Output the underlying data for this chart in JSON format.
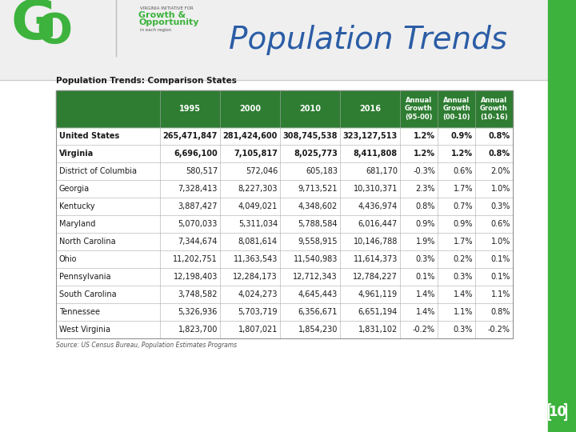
{
  "title": "Population Trends",
  "slide_title": "Population Trends: Comparison States",
  "source": "Source: US Census Bureau, Population Estimates Programs",
  "page_number": "10",
  "header_bg": "#2E7D32",
  "header_text_color": "#FFFFFF",
  "slide_bg": "#FFFFFF",
  "header_area_bg": "#E8E8E8",
  "green_sidebar_color": "#3DB33D",
  "title_color": "#1F4E79",
  "columns": [
    "",
    "1995",
    "2000",
    "2010",
    "2016",
    "Annual\nGrowth\n(95-00)",
    "Annual\nGrowth\n(00-10)",
    "Annual\nGrowth\n(10-16)"
  ],
  "rows": [
    [
      "United States",
      "265,471,847",
      "281,424,600",
      "308,745,538",
      "323,127,513",
      "1.2%",
      "0.9%",
      "0.8%"
    ],
    [
      "Virginia",
      "6,696,100",
      "7,105,817",
      "8,025,773",
      "8,411,808",
      "1.2%",
      "1.2%",
      "0.8%"
    ],
    [
      "District of Columbia",
      "580,517",
      "572,046",
      "605,183",
      "681,170",
      "-0.3%",
      "0.6%",
      "2.0%"
    ],
    [
      "Georgia",
      "7,328,413",
      "8,227,303",
      "9,713,521",
      "10,310,371",
      "2.3%",
      "1.7%",
      "1.0%"
    ],
    [
      "Kentucky",
      "3,887,427",
      "4,049,021",
      "4,348,602",
      "4,436,974",
      "0.8%",
      "0.7%",
      "0.3%"
    ],
    [
      "Maryland",
      "5,070,033",
      "5,311,034",
      "5,788,584",
      "6,016,447",
      "0.9%",
      "0.9%",
      "0.6%"
    ],
    [
      "North Carolina",
      "7,344,674",
      "8,081,614",
      "9,558,915",
      "10,146,788",
      "1.9%",
      "1.7%",
      "1.0%"
    ],
    [
      "Ohio",
      "11,202,751",
      "11,363,543",
      "11,540,983",
      "11,614,373",
      "0.3%",
      "0.2%",
      "0.1%"
    ],
    [
      "Pennsylvania",
      "12,198,403",
      "12,284,173",
      "12,712,343",
      "12,784,227",
      "0.1%",
      "0.3%",
      "0.1%"
    ],
    [
      "South Carolina",
      "3,748,582",
      "4,024,273",
      "4,645,443",
      "4,961,119",
      "1.4%",
      "1.4%",
      "1.1%"
    ],
    [
      "Tennessee",
      "5,326,936",
      "5,703,719",
      "6,356,671",
      "6,651,194",
      "1.4%",
      "1.1%",
      "0.8%"
    ],
    [
      "West Virginia",
      "1,823,700",
      "1,807,021",
      "1,854,230",
      "1,831,102",
      "-0.2%",
      "0.3%",
      "-0.2%"
    ]
  ]
}
